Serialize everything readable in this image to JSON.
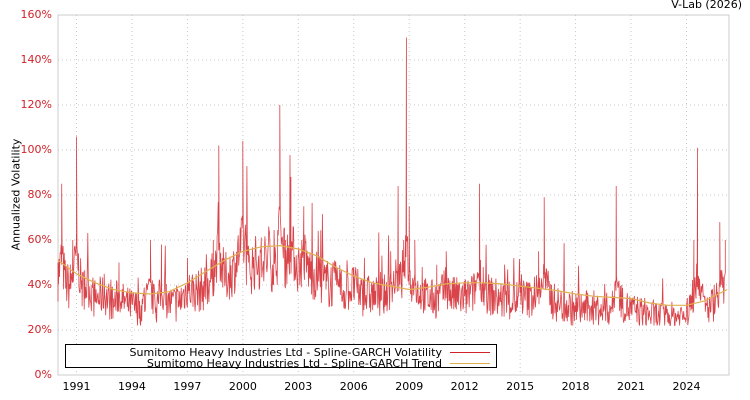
{
  "header": {
    "credit": "V-Lab (2026)"
  },
  "legend": {
    "items": [
      {
        "label": "Sumitomo Heavy Industries Ltd - Spline-GARCH Volatility",
        "color": "#d2232a"
      },
      {
        "label": "Sumitomo Heavy Industries Ltd - Spline-GARCH Trend",
        "color": "#e0b050"
      }
    ]
  },
  "chart_data": {
    "type": "line",
    "title": "",
    "xlabel": "",
    "ylabel": "Annualized Volatility",
    "ylim": [
      0,
      160
    ],
    "xlim": [
      1990.0,
      2026.3
    ],
    "grid": true,
    "legend_position": "bottom-left inside plot",
    "y_ticks": [
      "0%",
      "20%",
      "40%",
      "60%",
      "80%",
      "100%",
      "120%",
      "140%",
      "160%"
    ],
    "x_ticks": [
      "1991",
      "1994",
      "1997",
      "2000",
      "2003",
      "2006",
      "2009",
      "2012",
      "2015",
      "2018",
      "2021",
      "2024"
    ],
    "series": [
      {
        "name": "Sumitomo Heavy Industries Ltd - Spline-GARCH Volatility",
        "color": "#d2232a",
        "x": [
          1990.0,
          1990.2,
          1990.4,
          1990.6,
          1990.8,
          1991.0,
          1991.3,
          1991.6,
          1992.0,
          1992.5,
          1993.0,
          1993.3,
          1993.6,
          1994.0,
          1994.5,
          1995.0,
          1995.3,
          1995.6,
          1996.0,
          1996.5,
          1997.0,
          1997.5,
          1998.0,
          1998.4,
          1998.7,
          1999.0,
          1999.5,
          2000.0,
          2000.3,
          2000.7,
          2001.0,
          2001.4,
          2001.8,
          2002.0,
          2002.3,
          2002.6,
          2003.0,
          2003.3,
          2003.6,
          2004.0,
          2004.5,
          2005.0,
          2005.5,
          2006.0,
          2006.5,
          2007.0,
          2007.5,
          2008.0,
          2008.4,
          2008.7,
          2008.85,
          2009.0,
          2009.3,
          2009.7,
          2010.0,
          2010.5,
          2011.0,
          2011.2,
          2011.5,
          2012.0,
          2012.5,
          2012.8,
          2013.0,
          2013.4,
          2014.0,
          2014.5,
          2015.0,
          2015.5,
          2016.0,
          2016.3,
          2016.7,
          2017.0,
          2017.5,
          2018.0,
          2018.5,
          2019.0,
          2019.5,
          2020.0,
          2020.2,
          2020.5,
          2021.0,
          2021.5,
          2022.0,
          2022.5,
          2023.0,
          2023.5,
          2024.0,
          2024.4,
          2024.6,
          2025.0,
          2025.5,
          2025.8,
          2026.1
        ],
        "values": [
          50,
          85,
          45,
          38,
          60,
          106,
          42,
          55,
          33,
          45,
          30,
          50,
          35,
          32,
          28,
          60,
          30,
          58,
          35,
          30,
          52,
          40,
          42,
          60,
          102,
          45,
          55,
          104,
          50,
          60,
          58,
          66,
          45,
          120,
          60,
          88,
          52,
          75,
          50,
          45,
          38,
          42,
          35,
          48,
          36,
          40,
          38,
          55,
          84,
          60,
          150,
          75,
          60,
          48,
          40,
          36,
          55,
          42,
          38,
          35,
          45,
          85,
          48,
          40,
          33,
          30,
          42,
          38,
          55,
          79,
          40,
          33,
          30,
          28,
          30,
          33,
          28,
          35,
          84,
          40,
          32,
          30,
          28,
          26,
          25,
          27,
          30,
          60,
          101,
          35,
          40,
          68,
          60
        ]
      },
      {
        "name": "Sumitomo Heavy Industries Ltd - Spline-GARCH Trend",
        "color": "#e0b050",
        "x": [
          1990.0,
          1991.0,
          1992.0,
          1993.0,
          1994.0,
          1995.0,
          1996.0,
          1997.0,
          1998.0,
          1999.0,
          2000.0,
          2001.0,
          2002.0,
          2003.0,
          2004.0,
          2005.0,
          2006.0,
          2007.0,
          2008.0,
          2009.0,
          2010.0,
          2011.0,
          2012.0,
          2013.0,
          2014.0,
          2015.0,
          2016.0,
          2017.0,
          2018.0,
          2019.0,
          2020.0,
          2021.0,
          2022.0,
          2023.0,
          2024.0,
          2025.0,
          2026.2
        ],
        "values": [
          51,
          45,
          41,
          38,
          36.5,
          36,
          37,
          41,
          46,
          51,
          55,
          57,
          57.5,
          56,
          53,
          48,
          44,
          41,
          39.5,
          38,
          39,
          40.5,
          41,
          41,
          40.5,
          39.5,
          38.5,
          37.5,
          36,
          35,
          34.5,
          34,
          32,
          31,
          31,
          33,
          38
        ]
      }
    ]
  }
}
